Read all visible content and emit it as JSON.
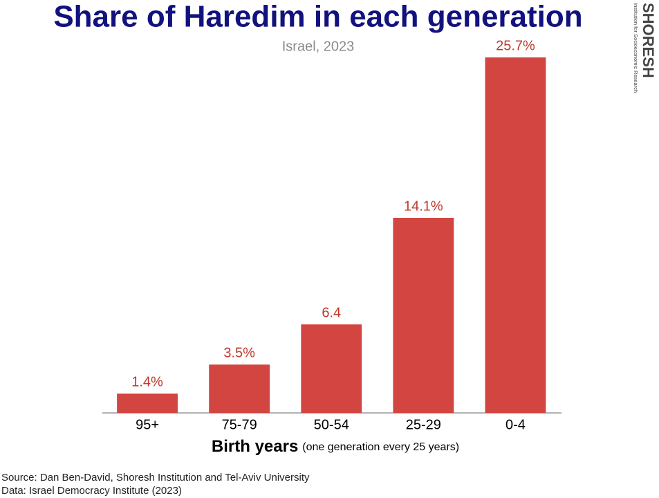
{
  "chart_data": {
    "type": "bar",
    "title": "Share of Haredim in each generation",
    "subtitle": "Israel, 2023",
    "categories": [
      "95+",
      "75-79",
      "50-54",
      "25-29",
      "0-4"
    ],
    "values": [
      1.4,
      3.5,
      6.4,
      14.1,
      25.7
    ],
    "value_labels": [
      "1.4%",
      "3.5%",
      "6.4",
      "14.1%",
      "25.7%"
    ],
    "color": "#d24540",
    "ylim": [
      0,
      26
    ],
    "xlabel": "Birth years",
    "xlabel_note": "(one generation every 25 years)",
    "source": [
      "Source: Dan Ben-David, Shoresh Institution and Tel-Aviv University",
      "Data: Israel Democracy Institute (2023)"
    ]
  },
  "logo": {
    "name": "SHORESH",
    "tagline": "Institution for Socioeconomic Research"
  }
}
